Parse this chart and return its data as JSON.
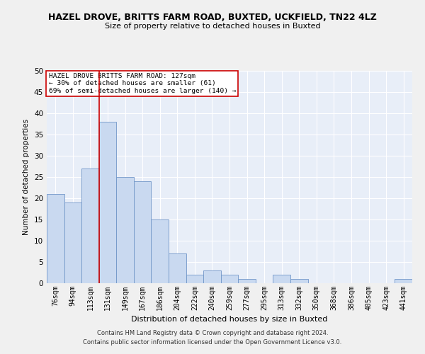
{
  "title1": "HAZEL DROVE, BRITTS FARM ROAD, BUXTED, UCKFIELD, TN22 4LZ",
  "title2": "Size of property relative to detached houses in Buxted",
  "xlabel": "Distribution of detached houses by size in Buxted",
  "ylabel": "Number of detached properties",
  "categories": [
    "76sqm",
    "94sqm",
    "113sqm",
    "131sqm",
    "149sqm",
    "167sqm",
    "186sqm",
    "204sqm",
    "222sqm",
    "240sqm",
    "259sqm",
    "277sqm",
    "295sqm",
    "313sqm",
    "332sqm",
    "350sqm",
    "368sqm",
    "386sqm",
    "405sqm",
    "423sqm",
    "441sqm"
  ],
  "values": [
    21,
    19,
    27,
    38,
    25,
    24,
    15,
    7,
    2,
    3,
    2,
    1,
    0,
    2,
    1,
    0,
    0,
    0,
    0,
    0,
    1
  ],
  "bar_color": "#c9d9f0",
  "bar_edge_color": "#7096c8",
  "vline_x_index": 3,
  "vline_color": "#cc0000",
  "annotation_title": "HAZEL DROVE BRITTS FARM ROAD: 127sqm",
  "annotation_line2": "← 30% of detached houses are smaller (61)",
  "annotation_line3": "69% of semi-detached houses are larger (140) →",
  "annotation_box_color": "#ffffff",
  "annotation_box_edge": "#cc0000",
  "footer1": "Contains HM Land Registry data © Crown copyright and database right 2024.",
  "footer2": "Contains public sector information licensed under the Open Government Licence v3.0.",
  "fig_bg_color": "#f0f0f0",
  "plot_bg_color": "#e8eef8",
  "grid_color": "#ffffff",
  "ylim": [
    0,
    50
  ],
  "yticks": [
    0,
    5,
    10,
    15,
    20,
    25,
    30,
    35,
    40,
    45,
    50
  ],
  "title1_fontsize": 9,
  "title2_fontsize": 8,
  "ylabel_fontsize": 7.5,
  "xlabel_fontsize": 8,
  "tick_fontsize": 7,
  "footer_fontsize": 6,
  "ann_fontsize": 6.8
}
